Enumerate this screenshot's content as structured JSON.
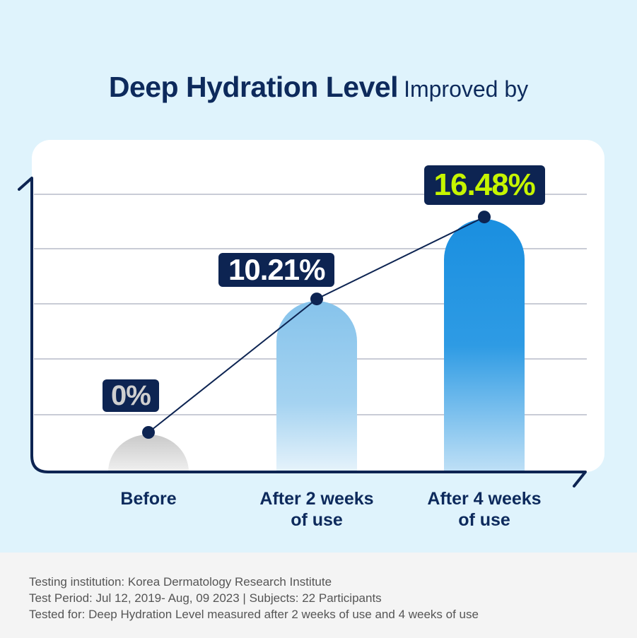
{
  "title": {
    "bold": "Deep Hydration Level",
    "regular": "Improved by"
  },
  "chart_data": {
    "type": "bar",
    "categories": [
      "Before",
      "After 2 weeks of use",
      "After 4 weeks of use"
    ],
    "values": [
      0,
      10.21,
      16.48
    ],
    "data_labels": [
      "0%",
      "10.21%",
      "16.48%"
    ],
    "unit": "%",
    "grid": true,
    "overlay_line": true,
    "colors": {
      "before": "#d0d0d0",
      "week2": "#8cc6ec",
      "week4": "#1a8fe0",
      "label_bg": "#0d2452",
      "highlight": "#c6f500",
      "axis": "#0d2452"
    }
  },
  "x_labels": [
    [
      "Before",
      ""
    ],
    [
      "After 2 weeks",
      "of use"
    ],
    [
      "After 4 weeks",
      "of use"
    ]
  ],
  "footer": {
    "line1": "Testing institution: Korea Dermatology Research Institute",
    "line2": "Test Period: Jul 12, 2019- Aug, 09 2023  |  Subjects: 22 Participants",
    "line3": "Tested for: Deep Hydration Level measured after 2 weeks of use and 4 weeks of use"
  }
}
